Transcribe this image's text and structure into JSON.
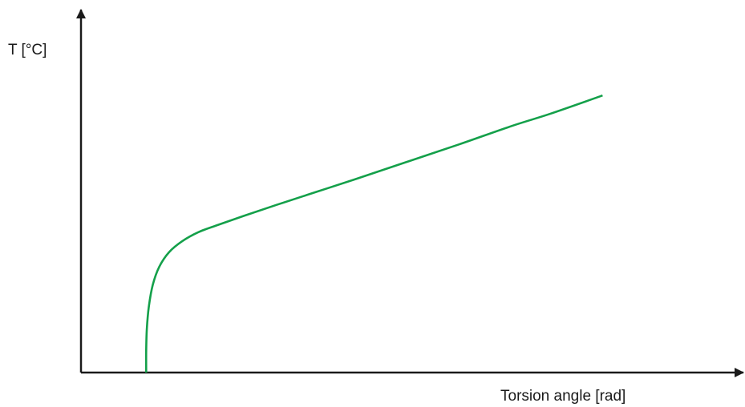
{
  "chart_data": {
    "type": "line",
    "title": "",
    "xlabel": "Torsion angle [rad]",
    "ylabel": "T [°C]",
    "xlim": [
      0,
      1
    ],
    "ylim": [
      0,
      1
    ],
    "tick_labels": false,
    "grid": false,
    "legend": "none",
    "series": [
      {
        "color": "#14a04a",
        "x": [
          0.1,
          0.1,
          0.101,
          0.104,
          0.11,
          0.12,
          0.135,
          0.155,
          0.18,
          0.21,
          0.25,
          0.3,
          0.36,
          0.42,
          0.5,
          0.58,
          0.66,
          0.72,
          0.8
        ],
        "y": [
          0.0,
          0.06,
          0.12,
          0.18,
          0.24,
          0.29,
          0.33,
          0.36,
          0.385,
          0.405,
          0.43,
          0.46,
          0.495,
          0.53,
          0.578,
          0.626,
          0.676,
          0.71,
          0.76
        ]
      }
    ]
  }
}
